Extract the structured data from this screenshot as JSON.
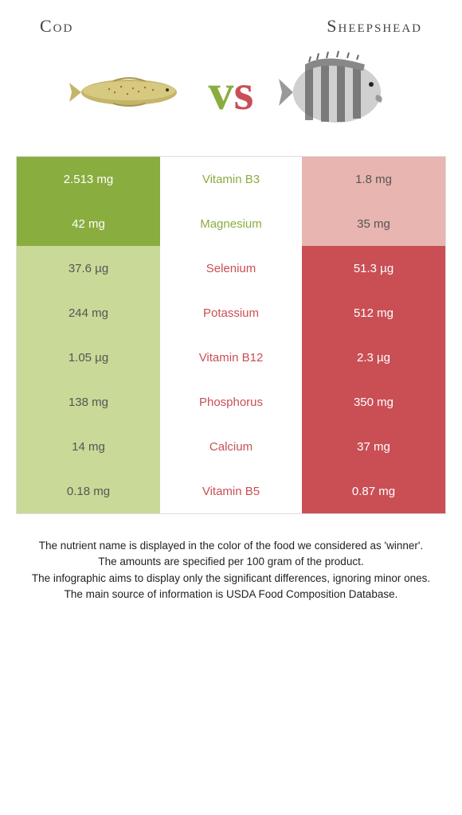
{
  "left_title": "Cod",
  "right_title": "Sheepshead",
  "vs_v": "v",
  "vs_s": "s",
  "colors": {
    "green": "#8aad3f",
    "green_light": "#c9d998",
    "red": "#c94f55",
    "red_light": "#e8b5b0"
  },
  "rows": [
    {
      "left": "2.513 mg",
      "mid": "Vitamin B3",
      "right": "1.8 mg",
      "winner": "left"
    },
    {
      "left": "42 mg",
      "mid": "Magnesium",
      "right": "35 mg",
      "winner": "left"
    },
    {
      "left": "37.6 µg",
      "mid": "Selenium",
      "right": "51.3 µg",
      "winner": "right"
    },
    {
      "left": "244 mg",
      "mid": "Potassium",
      "right": "512 mg",
      "winner": "right"
    },
    {
      "left": "1.05 µg",
      "mid": "Vitamin B12",
      "right": "2.3 µg",
      "winner": "right"
    },
    {
      "left": "138 mg",
      "mid": "Phosphorus",
      "right": "350 mg",
      "winner": "right"
    },
    {
      "left": "14 mg",
      "mid": "Calcium",
      "right": "37 mg",
      "winner": "right"
    },
    {
      "left": "0.18 mg",
      "mid": "Vitamin B5",
      "right": "0.87 mg",
      "winner": "right"
    }
  ],
  "footer1": "The nutrient name is displayed in the color of the food we considered as 'winner'.",
  "footer2": "The amounts are specified per 100 gram of the product.",
  "footer3": "The infographic aims to display only the significant differences, ignoring minor ones.",
  "footer4": "The main source of information is USDA Food Composition Database."
}
